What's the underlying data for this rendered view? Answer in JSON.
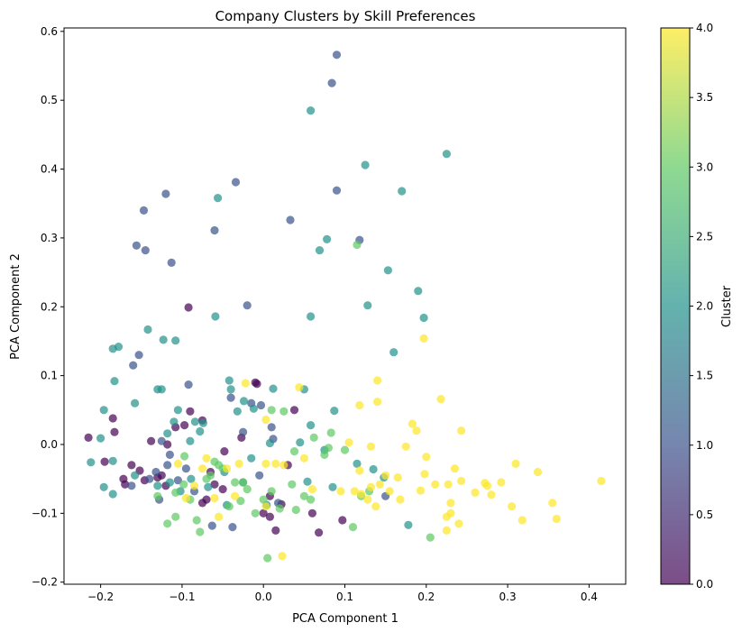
{
  "chart_data": {
    "type": "scatter",
    "title": "Company Clusters by Skill Preferences",
    "xlabel": "PCA Component 1",
    "ylabel": "PCA Component 2",
    "xlim": [
      -0.245,
      0.445
    ],
    "ylim": [
      -0.203,
      0.605
    ],
    "xticks": [
      -0.2,
      -0.1,
      0.0,
      0.1,
      0.2,
      0.3,
      0.4
    ],
    "xtick_labels": [
      "−0.2",
      "−0.1",
      "0.0",
      "0.1",
      "0.2",
      "0.3",
      "0.4"
    ],
    "yticks": [
      -0.2,
      -0.1,
      0.0,
      0.1,
      0.2,
      0.3,
      0.4,
      0.5,
      0.6
    ],
    "ytick_labels": [
      "−0.2",
      "−0.1",
      "0.0",
      "0.1",
      "0.2",
      "0.3",
      "0.4",
      "0.5",
      "0.6"
    ],
    "grid": false,
    "point_alpha": 0.7,
    "colormap": "viridis",
    "colors": {
      "c0": "#440154",
      "c1": "#3b528b",
      "c2": "#21918c",
      "c3": "#5ec962",
      "c4": "#fde725"
    },
    "colorbar": {
      "label": "Cluster",
      "range": [
        0.0,
        4.0
      ],
      "ticks": [
        0.0,
        0.5,
        1.0,
        1.5,
        2.0,
        2.5,
        3.0,
        3.5,
        4.0
      ],
      "tick_labels": [
        "0.0",
        "0.5",
        "1.0",
        "1.5",
        "2.0",
        "2.5",
        "3.0",
        "3.5",
        "4.0"
      ]
    },
    "series": [
      {
        "cluster": 0,
        "points": [
          [
            -0.215,
            0.01
          ],
          [
            -0.185,
            0.038
          ],
          [
            -0.172,
            -0.05
          ],
          [
            -0.162,
            -0.03
          ],
          [
            -0.152,
            -0.038
          ],
          [
            -0.146,
            -0.052
          ],
          [
            -0.138,
            0.005
          ],
          [
            -0.125,
            -0.045
          ],
          [
            -0.118,
            0.0
          ],
          [
            -0.108,
            0.025
          ],
          [
            -0.097,
            0.028
          ],
          [
            -0.09,
            0.048
          ],
          [
            -0.092,
            0.199
          ],
          [
            -0.075,
            0.035
          ],
          [
            -0.07,
            -0.08
          ],
          [
            -0.065,
            -0.04
          ],
          [
            -0.06,
            -0.058
          ],
          [
            -0.05,
            -0.065
          ],
          [
            -0.048,
            -0.01
          ],
          [
            -0.027,
            0.01
          ],
          [
            -0.01,
            0.09
          ],
          [
            -0.008,
            0.088
          ],
          [
            0.0,
            -0.1
          ],
          [
            0.008,
            -0.075
          ],
          [
            0.015,
            -0.125
          ],
          [
            0.022,
            -0.087
          ],
          [
            0.03,
            -0.03
          ],
          [
            0.038,
            0.05
          ],
          [
            0.06,
            -0.1
          ],
          [
            0.068,
            -0.128
          ],
          [
            0.097,
            -0.11
          ],
          [
            -0.183,
            0.018
          ],
          [
            -0.195,
            -0.025
          ],
          [
            -0.17,
            -0.058
          ],
          [
            -0.13,
            -0.048
          ],
          [
            -0.075,
            -0.085
          ],
          [
            0.008,
            -0.105
          ],
          [
            -0.12,
            -0.06
          ]
        ]
      },
      {
        "cluster": 1,
        "points": [
          [
            0.09,
            0.566
          ],
          [
            0.084,
            0.525
          ],
          [
            0.09,
            0.369
          ],
          [
            -0.034,
            0.381
          ],
          [
            -0.12,
            0.364
          ],
          [
            -0.147,
            0.34
          ],
          [
            0.033,
            0.326
          ],
          [
            -0.06,
            0.311
          ],
          [
            -0.156,
            0.289
          ],
          [
            -0.145,
            0.282
          ],
          [
            0.118,
            0.297
          ],
          [
            -0.113,
            0.264
          ],
          [
            -0.02,
            0.202
          ],
          [
            -0.16,
            0.115
          ],
          [
            -0.153,
            0.13
          ],
          [
            -0.092,
            0.087
          ],
          [
            -0.04,
            0.068
          ],
          [
            -0.015,
            0.06
          ],
          [
            -0.003,
            0.057
          ],
          [
            0.01,
            0.025
          ],
          [
            0.012,
            0.008
          ],
          [
            -0.125,
            0.005
          ],
          [
            -0.115,
            -0.015
          ],
          [
            -0.095,
            -0.035
          ],
          [
            -0.132,
            -0.04
          ],
          [
            -0.14,
            -0.05
          ],
          [
            -0.162,
            -0.06
          ],
          [
            -0.085,
            -0.068
          ],
          [
            -0.063,
            -0.118
          ],
          [
            -0.038,
            -0.12
          ],
          [
            -0.025,
            0.018
          ],
          [
            -0.005,
            -0.045
          ],
          [
            0.018,
            -0.085
          ],
          [
            0.15,
            -0.075
          ],
          [
            -0.128,
            -0.08
          ],
          [
            -0.105,
            -0.052
          ],
          [
            -0.118,
            -0.03
          ]
        ]
      },
      {
        "cluster": 2,
        "points": [
          [
            0.225,
            0.422
          ],
          [
            0.058,
            0.485
          ],
          [
            0.125,
            0.406
          ],
          [
            0.17,
            0.368
          ],
          [
            -0.056,
            0.358
          ],
          [
            0.078,
            0.298
          ],
          [
            0.069,
            0.282
          ],
          [
            0.153,
            0.253
          ],
          [
            0.19,
            0.223
          ],
          [
            0.128,
            0.202
          ],
          [
            0.058,
            0.186
          ],
          [
            -0.059,
            0.186
          ],
          [
            0.197,
            0.184
          ],
          [
            -0.142,
            0.167
          ],
          [
            0.16,
            0.134
          ],
          [
            -0.123,
            0.152
          ],
          [
            -0.108,
            0.151
          ],
          [
            -0.178,
            0.142
          ],
          [
            -0.185,
            0.139
          ],
          [
            -0.183,
            0.092
          ],
          [
            -0.125,
            0.08
          ],
          [
            -0.158,
            0.06
          ],
          [
            -0.042,
            0.093
          ],
          [
            -0.04,
            0.08
          ],
          [
            -0.024,
            0.063
          ],
          [
            0.05,
            0.08
          ],
          [
            -0.196,
            0.05
          ],
          [
            -0.105,
            0.05
          ],
          [
            -0.032,
            0.048
          ],
          [
            -0.012,
            0.052
          ],
          [
            -0.11,
            0.033
          ],
          [
            -0.084,
            0.033
          ],
          [
            -0.074,
            0.031
          ],
          [
            0.058,
            0.028
          ],
          [
            -0.2,
            0.009
          ],
          [
            -0.118,
            0.016
          ],
          [
            -0.078,
            0.019
          ],
          [
            0.008,
            0.002
          ],
          [
            0.045,
            0.003
          ],
          [
            0.075,
            -0.008
          ],
          [
            0.087,
            0.049
          ],
          [
            -0.212,
            -0.026
          ],
          [
            -0.185,
            -0.024
          ],
          [
            -0.196,
            -0.062
          ],
          [
            -0.185,
            -0.072
          ],
          [
            -0.158,
            -0.045
          ],
          [
            -0.13,
            -0.06
          ],
          [
            -0.115,
            -0.055
          ],
          [
            -0.102,
            -0.068
          ],
          [
            -0.089,
            -0.05
          ],
          [
            -0.068,
            -0.062
          ],
          [
            -0.048,
            -0.04
          ],
          [
            -0.025,
            -0.055
          ],
          [
            -0.015,
            -0.02
          ],
          [
            0.004,
            -0.088
          ],
          [
            0.012,
            0.081
          ],
          [
            0.054,
            -0.054
          ],
          [
            0.085,
            -0.062
          ],
          [
            0.115,
            -0.028
          ],
          [
            0.135,
            -0.036
          ],
          [
            0.148,
            -0.048
          ],
          [
            0.178,
            -0.117
          ],
          [
            -0.045,
            -0.088
          ],
          [
            -0.13,
            0.08
          ],
          [
            -0.09,
            0.005
          ]
        ]
      },
      {
        "cluster": 3,
        "points": [
          [
            0.115,
            0.29
          ],
          [
            0.038,
            -0.01
          ],
          [
            0.025,
            0.048
          ],
          [
            0.01,
            0.05
          ],
          [
            -0.06,
            -0.025
          ],
          [
            -0.13,
            -0.075
          ],
          [
            -0.118,
            -0.115
          ],
          [
            -0.108,
            -0.07
          ],
          [
            -0.098,
            -0.058
          ],
          [
            -0.09,
            -0.08
          ],
          [
            -0.082,
            -0.11
          ],
          [
            -0.078,
            -0.127
          ],
          [
            -0.065,
            -0.045
          ],
          [
            -0.055,
            -0.03
          ],
          [
            -0.05,
            -0.035
          ],
          [
            -0.042,
            -0.09
          ],
          [
            -0.035,
            -0.055
          ],
          [
            -0.028,
            -0.082
          ],
          [
            -0.02,
            -0.065
          ],
          [
            -0.01,
            -0.1
          ],
          [
            0.005,
            -0.165
          ],
          [
            0.01,
            -0.068
          ],
          [
            0.02,
            -0.093
          ],
          [
            0.035,
            -0.058
          ],
          [
            0.04,
            -0.095
          ],
          [
            0.05,
            -0.075
          ],
          [
            0.058,
            -0.08
          ],
          [
            0.062,
            0.01
          ],
          [
            0.075,
            -0.015
          ],
          [
            0.08,
            -0.005
          ],
          [
            0.083,
            0.017
          ],
          [
            0.1,
            -0.008
          ],
          [
            0.11,
            -0.12
          ],
          [
            0.12,
            -0.075
          ],
          [
            0.13,
            -0.068
          ],
          [
            0.205,
            -0.135
          ],
          [
            -0.097,
            -0.017
          ],
          [
            -0.025,
            -0.055
          ],
          [
            -0.07,
            -0.05
          ],
          [
            -0.108,
            -0.105
          ],
          [
            0.0,
            -0.08
          ]
        ]
      },
      {
        "cluster": 4,
        "points": [
          [
            0.197,
            0.154
          ],
          [
            0.218,
            0.066
          ],
          [
            0.14,
            0.093
          ],
          [
            0.14,
            0.062
          ],
          [
            0.118,
            0.057
          ],
          [
            0.044,
            0.083
          ],
          [
            -0.022,
            0.089
          ],
          [
            0.003,
            0.036
          ],
          [
            0.105,
            0.003
          ],
          [
            0.175,
            -0.003
          ],
          [
            0.183,
            0.03
          ],
          [
            0.188,
            0.02
          ],
          [
            0.243,
            0.02
          ],
          [
            0.132,
            -0.003
          ],
          [
            0.2,
            -0.018
          ],
          [
            0.235,
            -0.035
          ],
          [
            0.118,
            -0.038
          ],
          [
            0.15,
            -0.045
          ],
          [
            0.165,
            -0.048
          ],
          [
            0.198,
            -0.043
          ],
          [
            0.243,
            -0.053
          ],
          [
            0.26,
            -0.07
          ],
          [
            0.272,
            -0.056
          ],
          [
            0.292,
            -0.055
          ],
          [
            0.31,
            -0.028
          ],
          [
            0.337,
            -0.04
          ],
          [
            0.227,
            -0.058
          ],
          [
            0.211,
            -0.058
          ],
          [
            0.112,
            -0.068
          ],
          [
            0.12,
            -0.072
          ],
          [
            0.132,
            -0.062
          ],
          [
            0.143,
            -0.058
          ],
          [
            0.155,
            -0.068
          ],
          [
            0.168,
            -0.08
          ],
          [
            0.193,
            -0.067
          ],
          [
            0.28,
            -0.073
          ],
          [
            0.275,
            -0.06
          ],
          [
            0.23,
            -0.085
          ],
          [
            0.225,
            -0.105
          ],
          [
            0.23,
            -0.1
          ],
          [
            0.24,
            -0.115
          ],
          [
            0.225,
            -0.125
          ],
          [
            0.305,
            -0.09
          ],
          [
            0.318,
            -0.11
          ],
          [
            0.355,
            -0.085
          ],
          [
            0.36,
            -0.108
          ],
          [
            0.415,
            -0.053
          ],
          [
            0.138,
            -0.09
          ],
          [
            0.06,
            -0.065
          ],
          [
            0.05,
            -0.02
          ],
          [
            0.025,
            -0.03
          ],
          [
            0.015,
            -0.028
          ],
          [
            0.003,
            -0.028
          ],
          [
            -0.03,
            -0.028
          ],
          [
            -0.045,
            -0.035
          ],
          [
            -0.07,
            -0.02
          ],
          [
            -0.085,
            -0.06
          ],
          [
            -0.095,
            -0.078
          ],
          [
            -0.06,
            -0.078
          ],
          [
            -0.055,
            -0.105
          ],
          [
            -0.035,
            -0.075
          ],
          [
            0.003,
            -0.09
          ],
          [
            0.023,
            -0.162
          ],
          [
            -0.105,
            -0.028
          ],
          [
            -0.075,
            -0.035
          ],
          [
            0.095,
            -0.068
          ],
          [
            0.128,
            -0.08
          ]
        ]
      }
    ]
  }
}
